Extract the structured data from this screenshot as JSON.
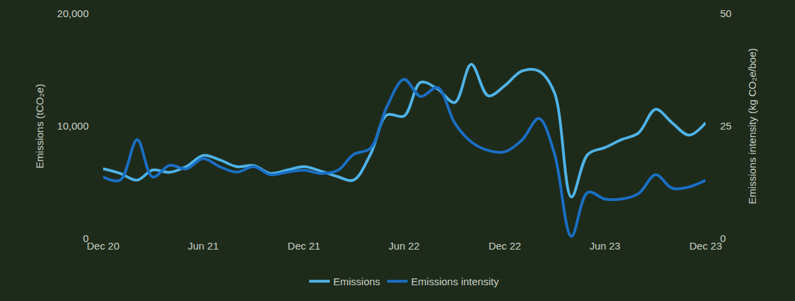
{
  "chart_data": {
    "type": "line",
    "x": [
      "2020-12",
      "2021-01",
      "2021-02",
      "2021-03",
      "2021-04",
      "2021-05",
      "2021-06",
      "2021-07",
      "2021-08",
      "2021-09",
      "2021-10",
      "2021-11",
      "2021-12",
      "2022-01",
      "2022-02",
      "2022-03",
      "2022-04",
      "2022-05",
      "2022-06",
      "2022-07",
      "2022-08",
      "2022-09",
      "2022-10",
      "2022-11",
      "2022-12",
      "2023-01",
      "2023-02",
      "2023-03",
      "2023-04",
      "2023-05",
      "2023-06",
      "2023-07",
      "2023-08",
      "2023-09",
      "2023-10",
      "2023-11",
      "2023-12"
    ],
    "series": [
      {
        "name": "Emissions",
        "color": "#4fb3e8",
        "values": [
          6200,
          5800,
          5200,
          6100,
          5900,
          6400,
          7400,
          7000,
          6400,
          6500,
          5800,
          6100,
          6400,
          6000,
          5500,
          5200,
          7500,
          11000,
          10900,
          13900,
          13300,
          12100,
          15500,
          12700,
          13600,
          14900,
          14900,
          13000,
          3700,
          7500,
          8100,
          8800,
          9400,
          11500,
          10300,
          9200,
          10300
        ]
      },
      {
        "name": "Emissions intensity",
        "color": "#1a6fc4",
        "axis": "y2",
        "values": [
          13.7,
          13.0,
          22.0,
          13.7,
          16.3,
          15.5,
          17.8,
          16.0,
          14.8,
          16.0,
          14.2,
          14.8,
          15.2,
          14.5,
          15.2,
          18.7,
          20.1,
          29.4,
          35.4,
          31.6,
          33.6,
          25.7,
          21.5,
          19.6,
          19.3,
          21.9,
          26.7,
          19.0,
          0.5,
          10.3,
          8.8,
          8.8,
          10.0,
          14.2,
          11.2,
          11.5,
          13.0
        ]
      }
    ],
    "xlim": [
      "2020-12",
      "2023-12"
    ],
    "xticks": [
      {
        "value": "2020-12",
        "label": "Dec 20"
      },
      {
        "value": "2021-06",
        "label": "Jun 21"
      },
      {
        "value": "2021-12",
        "label": "Dec 21"
      },
      {
        "value": "2022-06",
        "label": "Jun 22"
      },
      {
        "value": "2022-12",
        "label": "Dec 22"
      },
      {
        "value": "2023-06",
        "label": "Jun 23"
      },
      {
        "value": "2023-12",
        "label": "Dec 23"
      }
    ],
    "ylabel": "Emissions (tCO₂e)",
    "ylim": [
      0,
      20000
    ],
    "yticks": [
      0,
      {
        "value": 10000,
        "label": "10,000"
      },
      {
        "value": 20000,
        "label": "20,000"
      }
    ],
    "y2label": "Emissions intensity (kg CO₂e/boe)",
    "y2lim": [
      0,
      50
    ],
    "y2ticks": [
      0,
      25,
      50
    ],
    "grid": false,
    "legend": "bottom"
  }
}
